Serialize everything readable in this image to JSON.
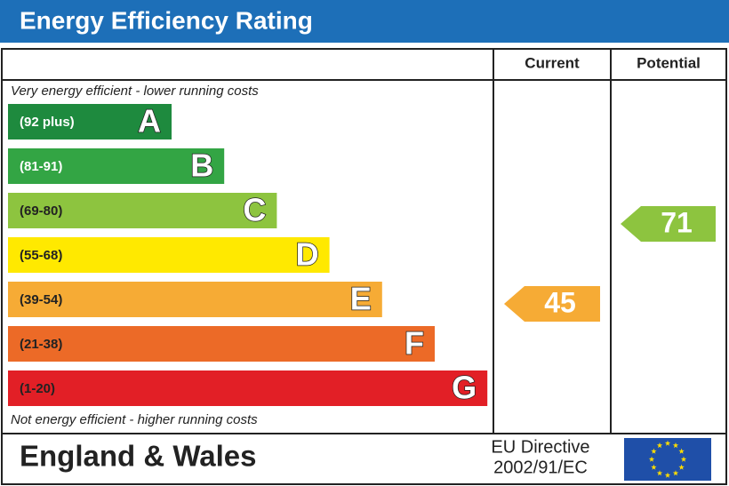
{
  "header": {
    "title": "Energy Efficiency Rating"
  },
  "columns": {
    "current": "Current",
    "potential": "Potential"
  },
  "top_note": "Very energy efficient - lower running costs",
  "bands": [
    {
      "range": "(92 plus)",
      "letter": "A",
      "color": "#1e8a3e"
    },
    {
      "range": "(81-91)",
      "letter": "B",
      "color": "#33a544"
    },
    {
      "range": "(69-80)",
      "letter": "C",
      "color": "#8dc43f"
    },
    {
      "range": "(55-68)",
      "letter": "D",
      "color": "#ffe900"
    },
    {
      "range": "(39-54)",
      "letter": "E",
      "color": "#f6ab35"
    },
    {
      "range": "(21-38)",
      "letter": "F",
      "color": "#ec6a27"
    },
    {
      "range": "(1-20)",
      "letter": "G",
      "color": "#e21f26"
    }
  ],
  "bottom_note": "Not energy efficient - higher running costs",
  "ratings": {
    "current": 45,
    "potential": 71
  },
  "footer": {
    "region": "England & Wales",
    "directive": [
      "EU Directive",
      "2002/91/EC"
    ]
  }
}
